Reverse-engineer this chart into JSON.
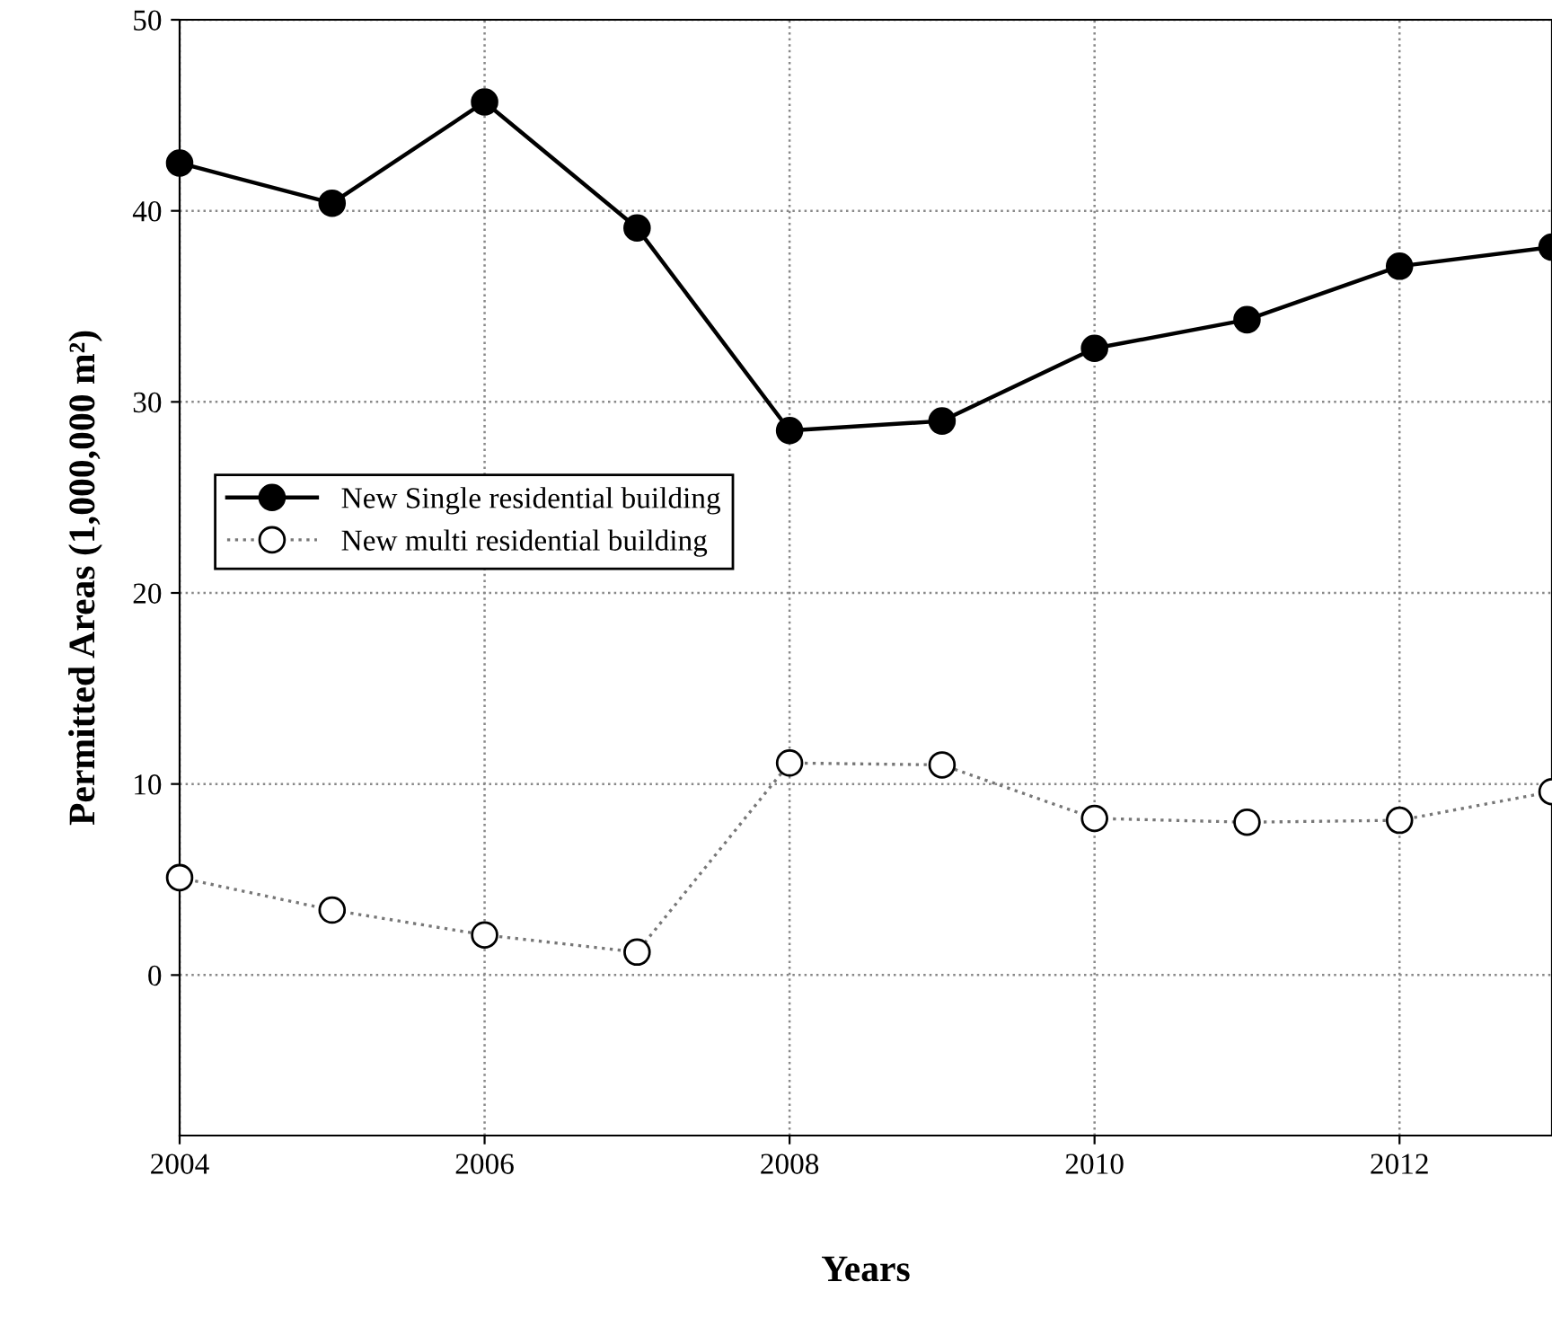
{
  "chart_data": {
    "type": "line",
    "xlabel": "Years",
    "ylabel": "Permitted Areas (1,000,000 m²)",
    "x": [
      2004,
      2005,
      2006,
      2007,
      2008,
      2009,
      2010,
      2011,
      2012,
      2013
    ],
    "series": [
      {
        "name": "New Single residential building",
        "color": "#000000",
        "line_style": "solid",
        "values": [
          42.5,
          40.4,
          45.7,
          39.1,
          28.5,
          29.0,
          32.8,
          34.3,
          37.1,
          38.1
        ]
      },
      {
        "name": "New multi residential building",
        "color": "#ffffff",
        "line_style": "dotted",
        "values": [
          5.1,
          3.4,
          2.1,
          1.2,
          11.1,
          11.0,
          8.2,
          8.0,
          8.1,
          9.6
        ]
      }
    ],
    "xlim": [
      2004,
      2013
    ],
    "xticks": [
      2004,
      2006,
      2008,
      2010,
      2012
    ],
    "ylim": [
      -8.4,
      50
    ],
    "yticks": [
      0,
      10,
      20,
      30,
      40,
      50
    ],
    "grid": true,
    "legend": "left",
    "marker": "circle"
  }
}
